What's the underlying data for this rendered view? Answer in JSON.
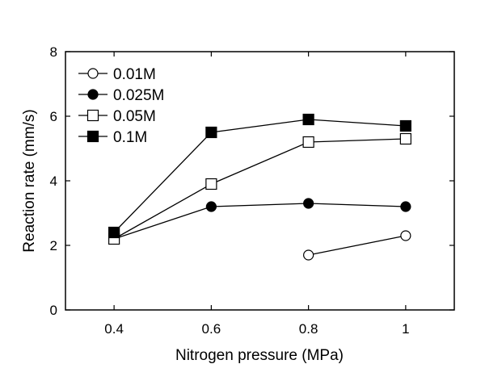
{
  "chart_data": {
    "type": "line",
    "title": "",
    "xlabel": "Nitrogen pressure (MPa)",
    "ylabel": "Reaction rate (mm/s)",
    "xlim": [
      0.3,
      1.1
    ],
    "ylim": [
      0,
      8
    ],
    "xticks": [
      0.4,
      0.6,
      0.8,
      1.0
    ],
    "xtick_labels": [
      "0.4",
      "0.6",
      "0.8",
      "1"
    ],
    "yticks": [
      0,
      2,
      4,
      6,
      8
    ],
    "ytick_labels": [
      "0",
      "2",
      "4",
      "6",
      "8"
    ],
    "grid": false,
    "legend_position": "top-left",
    "series": [
      {
        "name": "0.01M",
        "marker": "circle",
        "filled": false,
        "x": [
          0.8,
          1.0
        ],
        "y": [
          1.7,
          2.3
        ]
      },
      {
        "name": "0.025M",
        "marker": "circle",
        "filled": true,
        "x": [
          0.4,
          0.6,
          0.8,
          1.0
        ],
        "y": [
          2.2,
          3.2,
          3.3,
          3.2
        ]
      },
      {
        "name": "0.05M",
        "marker": "square",
        "filled": false,
        "x": [
          0.4,
          0.6,
          0.8,
          1.0
        ],
        "y": [
          2.2,
          3.9,
          5.2,
          5.3
        ]
      },
      {
        "name": "0.1M",
        "marker": "square",
        "filled": true,
        "x": [
          0.4,
          0.6,
          0.8,
          1.0
        ],
        "y": [
          2.4,
          5.5,
          5.9,
          5.7
        ]
      }
    ]
  }
}
